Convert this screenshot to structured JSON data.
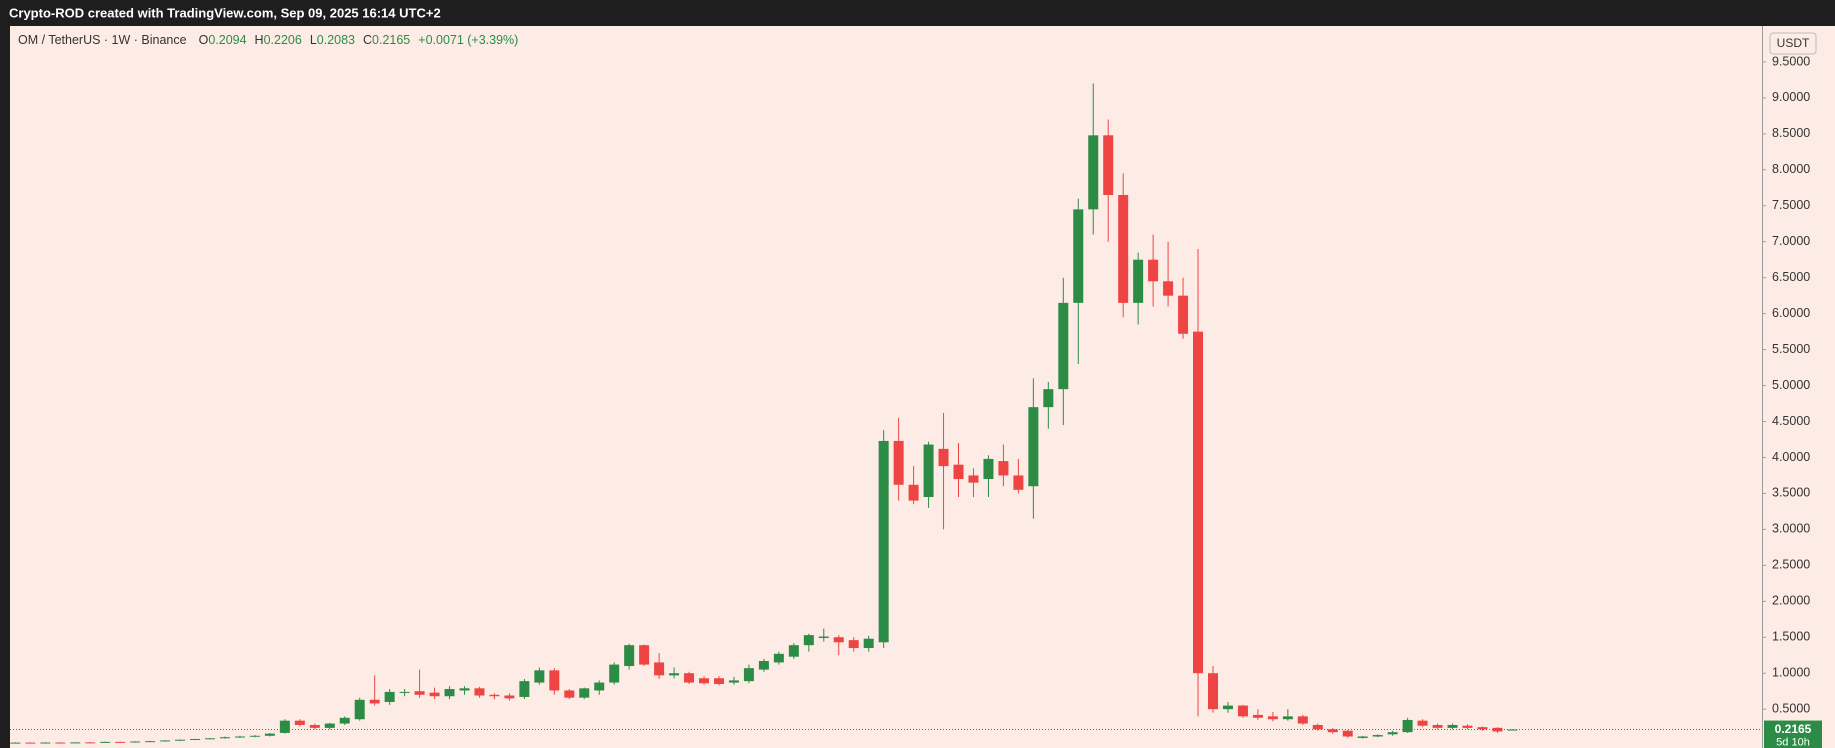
{
  "header": {
    "title": "Crypto-ROD created with TradingView.com, Sep 09, 2025 16:14 UTC+2"
  },
  "chart_data": {
    "type": "candlestick",
    "symbol": "OM / TetherUS · 1W · Binance",
    "legend_prefixes": [
      "O",
      "H",
      "L",
      "C"
    ],
    "change": "+0.0071 (+3.39%)",
    "currency": "USDT",
    "countdown": "5d 10h",
    "up_color": "#2c8c46",
    "down_color": "#ef4444",
    "grid": false,
    "ylim": [
      -0.04,
      10.0
    ],
    "yticks": [
      {
        "value": 0.5,
        "label": "0.5000"
      },
      {
        "value": 1.0,
        "label": "1.0000"
      },
      {
        "value": 1.5,
        "label": "1.5000"
      },
      {
        "value": 2.0,
        "label": "2.0000"
      },
      {
        "value": 2.5,
        "label": "2.5000"
      },
      {
        "value": 3.0,
        "label": "3.0000"
      },
      {
        "value": 3.5,
        "label": "3.5000"
      },
      {
        "value": 4.0,
        "label": "4.0000"
      },
      {
        "value": 4.5,
        "label": "4.5000"
      },
      {
        "value": 5.0,
        "label": "5.0000"
      },
      {
        "value": 5.5,
        "label": "5.5000"
      },
      {
        "value": 6.0,
        "label": "6.0000"
      },
      {
        "value": 6.5,
        "label": "6.5000"
      },
      {
        "value": 7.0,
        "label": "7.0000"
      },
      {
        "value": 7.5,
        "label": "7.5000"
      },
      {
        "value": 8.0,
        "label": "8.0000"
      },
      {
        "value": 8.5,
        "label": "8.5000"
      },
      {
        "value": 9.0,
        "label": "9.0000"
      },
      {
        "value": 9.5,
        "label": "9.5000"
      }
    ],
    "ohlc": {
      "open": [
        0.03,
        0.035,
        0.032,
        0.036,
        0.033,
        0.038,
        0.035,
        0.045,
        0.04,
        0.05,
        0.055,
        0.065,
        0.075,
        0.085,
        0.095,
        0.11,
        0.12,
        0.13,
        0.17,
        0.34,
        0.28,
        0.24,
        0.3,
        0.36,
        0.63,
        0.6,
        0.73,
        0.75,
        0.73,
        0.68,
        0.76,
        0.79,
        0.7,
        0.69,
        0.67,
        0.87,
        1.04,
        0.76,
        0.66,
        0.76,
        0.87,
        1.1,
        1.39,
        1.15,
        0.97,
        1.0,
        0.93,
        0.93,
        0.87,
        0.89,
        1.05,
        1.15,
        1.23,
        1.39,
        1.49,
        1.5,
        1.46,
        1.35,
        1.43,
        4.23,
        3.62,
        3.45,
        4.12,
        3.9,
        3.75,
        3.7,
        3.95,
        3.75,
        3.6,
        4.7,
        4.95,
        6.15,
        7.45,
        8.48,
        7.65,
        6.15,
        6.75,
        6.45,
        6.25,
        5.75,
        1.0,
        0.5,
        0.55,
        0.42,
        0.4,
        0.36,
        0.4,
        0.28,
        0.22,
        0.2,
        0.1,
        0.12,
        0.15,
        0.18,
        0.34,
        0.28,
        0.24,
        0.27,
        0.25,
        0.24,
        0.2094
      ],
      "high": [
        0.04,
        0.04,
        0.04,
        0.042,
        0.04,
        0.045,
        0.05,
        0.05,
        0.055,
        0.06,
        0.07,
        0.08,
        0.09,
        0.1,
        0.12,
        0.13,
        0.14,
        0.17,
        0.36,
        0.36,
        0.3,
        0.31,
        0.4,
        0.66,
        0.97,
        0.78,
        0.78,
        1.05,
        0.8,
        0.82,
        0.82,
        0.81,
        0.72,
        0.72,
        0.92,
        1.08,
        1.07,
        0.78,
        0.8,
        0.9,
        1.15,
        1.41,
        1.4,
        1.28,
        1.08,
        1.02,
        0.96,
        0.96,
        0.95,
        1.12,
        1.2,
        1.3,
        1.42,
        1.55,
        1.62,
        1.53,
        1.5,
        1.52,
        4.38,
        4.55,
        3.88,
        4.22,
        4.62,
        4.2,
        3.85,
        4.03,
        4.18,
        3.98,
        5.1,
        5.05,
        6.5,
        7.6,
        9.2,
        8.7,
        7.95,
        6.85,
        7.1,
        7.0,
        6.5,
        6.9,
        1.1,
        0.6,
        0.56,
        0.5,
        0.46,
        0.5,
        0.42,
        0.3,
        0.24,
        0.21,
        0.13,
        0.15,
        0.2,
        0.38,
        0.36,
        0.3,
        0.3,
        0.29,
        0.26,
        0.25,
        0.2206
      ],
      "low": [
        0.025,
        0.03,
        0.028,
        0.03,
        0.03,
        0.033,
        0.032,
        0.038,
        0.037,
        0.045,
        0.05,
        0.06,
        0.07,
        0.08,
        0.09,
        0.1,
        0.11,
        0.12,
        0.16,
        0.26,
        0.22,
        0.22,
        0.28,
        0.34,
        0.55,
        0.56,
        0.68,
        0.66,
        0.64,
        0.64,
        0.7,
        0.66,
        0.64,
        0.62,
        0.64,
        0.84,
        0.7,
        0.64,
        0.64,
        0.7,
        0.84,
        1.05,
        1.1,
        0.92,
        0.93,
        0.85,
        0.84,
        0.83,
        0.84,
        0.86,
        1.02,
        1.12,
        1.2,
        1.3,
        1.44,
        1.25,
        1.3,
        1.3,
        1.35,
        3.4,
        3.35,
        3.3,
        3.0,
        3.45,
        3.45,
        3.45,
        3.6,
        3.5,
        3.15,
        4.4,
        4.45,
        5.3,
        7.1,
        7.0,
        5.95,
        5.85,
        6.1,
        6.1,
        5.65,
        0.4,
        0.45,
        0.45,
        0.38,
        0.35,
        0.33,
        0.34,
        0.28,
        0.2,
        0.16,
        0.1,
        0.09,
        0.11,
        0.13,
        0.17,
        0.25,
        0.22,
        0.22,
        0.22,
        0.2,
        0.17,
        0.2083
      ],
      "close": [
        0.035,
        0.032,
        0.036,
        0.033,
        0.038,
        0.035,
        0.045,
        0.04,
        0.05,
        0.055,
        0.065,
        0.075,
        0.085,
        0.095,
        0.11,
        0.12,
        0.13,
        0.16,
        0.34,
        0.28,
        0.24,
        0.3,
        0.38,
        0.63,
        0.58,
        0.74,
        0.74,
        0.7,
        0.68,
        0.78,
        0.79,
        0.69,
        0.68,
        0.65,
        0.89,
        1.04,
        0.76,
        0.66,
        0.79,
        0.87,
        1.12,
        1.39,
        1.12,
        0.97,
        1.0,
        0.87,
        0.86,
        0.85,
        0.9,
        1.07,
        1.17,
        1.27,
        1.39,
        1.53,
        1.51,
        1.43,
        1.35,
        1.48,
        4.23,
        3.62,
        3.4,
        4.18,
        3.88,
        3.7,
        3.65,
        3.98,
        3.75,
        3.55,
        4.7,
        4.95,
        6.15,
        7.45,
        8.48,
        7.65,
        6.15,
        6.75,
        6.45,
        6.25,
        5.72,
        1.0,
        0.5,
        0.55,
        0.4,
        0.38,
        0.36,
        0.4,
        0.3,
        0.22,
        0.18,
        0.12,
        0.12,
        0.14,
        0.18,
        0.35,
        0.27,
        0.24,
        0.28,
        0.24,
        0.22,
        0.19,
        0.2165
      ]
    }
  }
}
